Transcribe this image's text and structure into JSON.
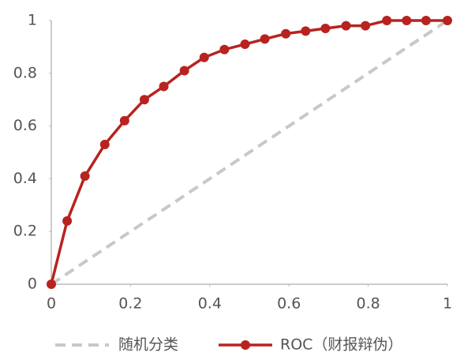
{
  "chart_data": {
    "type": "line",
    "series": [
      {
        "name": "随机分类",
        "color": "#c8c8c8",
        "dashed": true,
        "markers": false,
        "x": [
          0,
          1
        ],
        "values": [
          0,
          1
        ]
      },
      {
        "name": "ROC（财报辩伪）",
        "color": "#b8231f",
        "dashed": false,
        "markers": true,
        "x": [
          0,
          0.04,
          0.085,
          0.135,
          0.185,
          0.235,
          0.284,
          0.336,
          0.386,
          0.437,
          0.489,
          0.539,
          0.592,
          0.642,
          0.692,
          0.744,
          0.793,
          0.847,
          0.897,
          0.946,
          1
        ],
        "values": [
          0,
          0.24,
          0.41,
          0.53,
          0.62,
          0.7,
          0.75,
          0.81,
          0.86,
          0.89,
          0.91,
          0.93,
          0.95,
          0.96,
          0.97,
          0.98,
          0.98,
          1,
          1,
          1,
          1
        ]
      }
    ],
    "xlim": [
      0,
      1
    ],
    "xticks": [
      0,
      0.2,
      0.4,
      0.6,
      0.8,
      1
    ],
    "ylim": [
      0,
      1
    ],
    "yticks": [
      0,
      0.2,
      0.4,
      0.6,
      0.8,
      1
    ],
    "grid": false,
    "legend": "bottom"
  }
}
